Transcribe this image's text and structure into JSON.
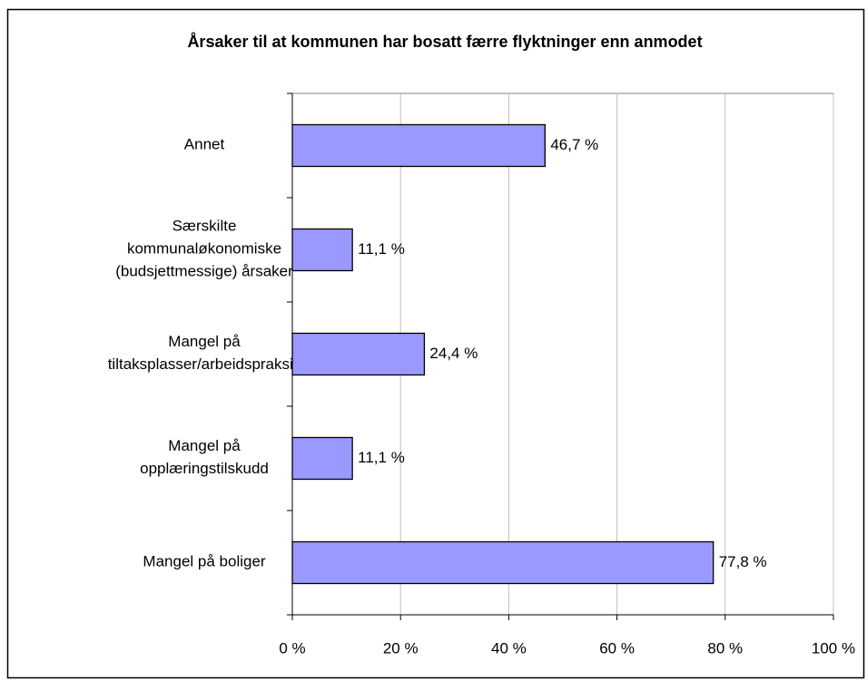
{
  "chart_data": {
    "type": "bar",
    "orientation": "horizontal",
    "title": "Årsaker til at kommunen har bosatt færre flyktninger enn anmodet",
    "categories": [
      [
        "Annet"
      ],
      [
        "Særskilte",
        "kommunaløkonomiske",
        "(budsjettmessige) årsaker"
      ],
      [
        "Mangel på",
        "tiltaksplasser/arbeidspraksis"
      ],
      [
        "Mangel på",
        "opplæringstilskudd"
      ],
      [
        "Mangel på boliger"
      ]
    ],
    "values": [
      46.7,
      11.1,
      24.4,
      11.1,
      77.8
    ],
    "value_labels": [
      "46,7 %",
      "11,1 %",
      "24,4 %",
      "11,1 %",
      "77,8 %"
    ],
    "color": "#9999ff",
    "xlim": [
      0,
      100
    ],
    "xticks": [
      {
        "value": 0,
        "label": "0 %"
      },
      {
        "value": 20,
        "label": "20 %"
      },
      {
        "value": 40,
        "label": "40 %"
      },
      {
        "value": 60,
        "label": "60 %"
      },
      {
        "value": 80,
        "label": "80 %"
      },
      {
        "value": 100,
        "label": "100 %"
      }
    ],
    "grid": true
  }
}
